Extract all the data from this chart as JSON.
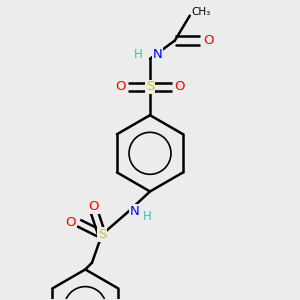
{
  "bg_color": "#ececec",
  "atom_colors": {
    "C": "#000000",
    "H": "#4db8b8",
    "N": "#0000ff",
    "O": "#ff0000",
    "S": "#cccc00"
  },
  "bond_color": "#000000",
  "bond_lw": 1.8,
  "figsize": [
    3.0,
    3.0
  ],
  "dpi": 100,
  "xlim": [
    0.15,
    0.85
  ],
  "ylim": [
    0.05,
    0.95
  ]
}
